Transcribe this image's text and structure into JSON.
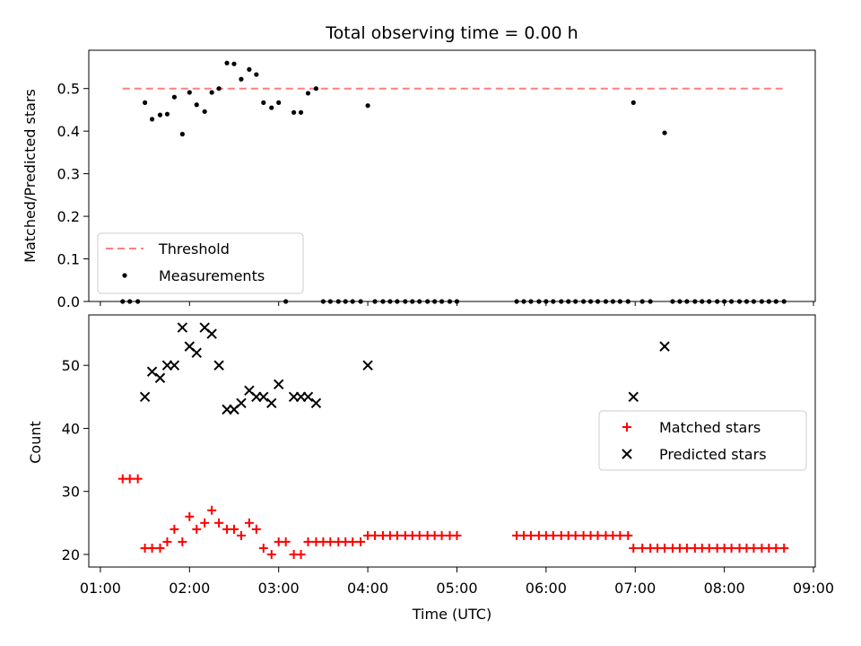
{
  "chart_data": [
    {
      "type": "scatter",
      "title": "Total observing time = 0.00 h",
      "xlabel": "",
      "ylabel": "Matched/Predicted stars",
      "xlim": [
        0.87,
        9.02
      ],
      "ylim": [
        0,
        0.59
      ],
      "yticks": [
        0.0,
        0.1,
        0.2,
        0.3,
        0.4,
        0.5
      ],
      "ytick_labels": [
        "0.0",
        "0.1",
        "0.2",
        "0.3",
        "0.4",
        "0.5"
      ],
      "legend_position": "lower-left",
      "legend": [
        "Threshold",
        "Measurements"
      ],
      "threshold": {
        "name": "Threshold",
        "value": 0.5,
        "x": [
          1.25,
          8.67
        ],
        "color": "#ff7f7f",
        "style": "dashed"
      },
      "series": [
        {
          "name": "Measurements",
          "color": "#000000",
          "marker": "dot",
          "x": [
            1.25,
            1.33,
            1.42,
            1.5,
            1.58,
            1.67,
            1.75,
            1.83,
            1.92,
            2.0,
            2.08,
            2.17,
            2.25,
            2.33,
            2.42,
            2.5,
            2.58,
            2.67,
            2.75,
            2.83,
            2.92,
            3.0,
            3.08,
            3.17,
            3.25,
            3.33,
            3.42,
            3.5,
            3.58,
            3.67,
            3.75,
            3.83,
            3.92,
            4.0,
            4.08,
            4.17,
            4.25,
            4.33,
            4.42,
            4.5,
            4.58,
            4.67,
            4.75,
            4.83,
            4.92,
            5.0,
            5.67,
            5.75,
            5.83,
            5.92,
            6.0,
            6.08,
            6.17,
            6.25,
            6.33,
            6.42,
            6.5,
            6.58,
            6.67,
            6.75,
            6.83,
            6.92,
            6.98,
            7.08,
            7.17,
            7.33,
            7.42,
            7.5,
            7.58,
            7.67,
            7.75,
            7.83,
            7.92,
            8.0,
            8.08,
            8.17,
            8.25,
            8.33,
            8.42,
            8.5,
            8.58,
            8.67
          ],
          "y": [
            0,
            0,
            0,
            0.467,
            0.428,
            0.438,
            0.44,
            0.48,
            0.393,
            0.491,
            0.462,
            0.446,
            0.491,
            0.5,
            0.56,
            0.558,
            0.522,
            0.545,
            0.533,
            0.467,
            0.455,
            0.467,
            0,
            0.444,
            0.444,
            0.489,
            0.5,
            0,
            0,
            0,
            0,
            0,
            0,
            0.46,
            0,
            0,
            0,
            0,
            0,
            0,
            0,
            0,
            0,
            0,
            0,
            0,
            0,
            0,
            0,
            0,
            0,
            0,
            0,
            0,
            0,
            0,
            0,
            0,
            0,
            0,
            0,
            0,
            0.467,
            0,
            0,
            0.396,
            0,
            0,
            0,
            0,
            0,
            0,
            0,
            0,
            0,
            0,
            0,
            0,
            0,
            0,
            0,
            0
          ]
        }
      ]
    },
    {
      "type": "scatter",
      "title": "",
      "xlabel": "Time (UTC)",
      "ylabel": "Count",
      "xlim": [
        0.87,
        9.02
      ],
      "ylim": [
        18,
        58
      ],
      "xticks": [
        1,
        2,
        3,
        4,
        5,
        6,
        7,
        8,
        9
      ],
      "xtick_labels": [
        "01:00",
        "02:00",
        "03:00",
        "04:00",
        "05:00",
        "06:00",
        "07:00",
        "08:00",
        "09:00"
      ],
      "yticks": [
        20,
        30,
        40,
        50
      ],
      "ytick_labels": [
        "20",
        "30",
        "40",
        "50"
      ],
      "legend_position": "center-right",
      "legend": [
        "Matched stars",
        "Predicted stars"
      ],
      "series": [
        {
          "name": "Matched stars",
          "color": "#ff0000",
          "marker": "plus",
          "x": [
            1.25,
            1.33,
            1.42,
            1.5,
            1.58,
            1.67,
            1.75,
            1.83,
            1.92,
            2.0,
            2.08,
            2.17,
            2.25,
            2.33,
            2.42,
            2.5,
            2.58,
            2.67,
            2.75,
            2.83,
            2.92,
            3.0,
            3.08,
            3.17,
            3.25,
            3.33,
            3.42,
            3.5,
            3.58,
            3.67,
            3.75,
            3.83,
            3.92,
            4.0,
            4.08,
            4.17,
            4.25,
            4.33,
            4.42,
            4.5,
            4.58,
            4.67,
            4.75,
            4.83,
            4.92,
            5.0,
            5.67,
            5.75,
            5.83,
            5.92,
            6.0,
            6.08,
            6.17,
            6.25,
            6.33,
            6.42,
            6.5,
            6.58,
            6.67,
            6.75,
            6.83,
            6.92,
            6.98,
            7.08,
            7.17,
            7.25,
            7.33,
            7.42,
            7.5,
            7.58,
            7.67,
            7.75,
            7.83,
            7.92,
            8.0,
            8.08,
            8.17,
            8.25,
            8.33,
            8.42,
            8.5,
            8.58,
            8.67
          ],
          "y": [
            32,
            32,
            32,
            21,
            21,
            21,
            22,
            24,
            22,
            26,
            24,
            25,
            27,
            25,
            24,
            24,
            23,
            25,
            24,
            21,
            20,
            22,
            22,
            20,
            20,
            22,
            22,
            22,
            22,
            22,
            22,
            22,
            22,
            23,
            23,
            23,
            23,
            23,
            23,
            23,
            23,
            23,
            23,
            23,
            23,
            23,
            23,
            23,
            23,
            23,
            23,
            23,
            23,
            23,
            23,
            23,
            23,
            23,
            23,
            23,
            23,
            23,
            21,
            21,
            21,
            21,
            21,
            21,
            21,
            21,
            21,
            21,
            21,
            21,
            21,
            21,
            21,
            21,
            21,
            21,
            21,
            21,
            21
          ]
        },
        {
          "name": "Predicted stars",
          "color": "#000000",
          "marker": "x",
          "x": [
            1.5,
            1.58,
            1.67,
            1.75,
            1.83,
            1.92,
            2.0,
            2.08,
            2.17,
            2.25,
            2.33,
            2.42,
            2.5,
            2.58,
            2.67,
            2.75,
            2.83,
            2.92,
            3.0,
            3.17,
            3.25,
            3.33,
            3.42,
            4.0,
            6.98,
            7.33
          ],
          "y": [
            45,
            49,
            48,
            50,
            50,
            56,
            53,
            52,
            56,
            55,
            50,
            43,
            43,
            44,
            46,
            45,
            45,
            44,
            47,
            45,
            45,
            45,
            44,
            50,
            45,
            53
          ]
        }
      ]
    }
  ]
}
